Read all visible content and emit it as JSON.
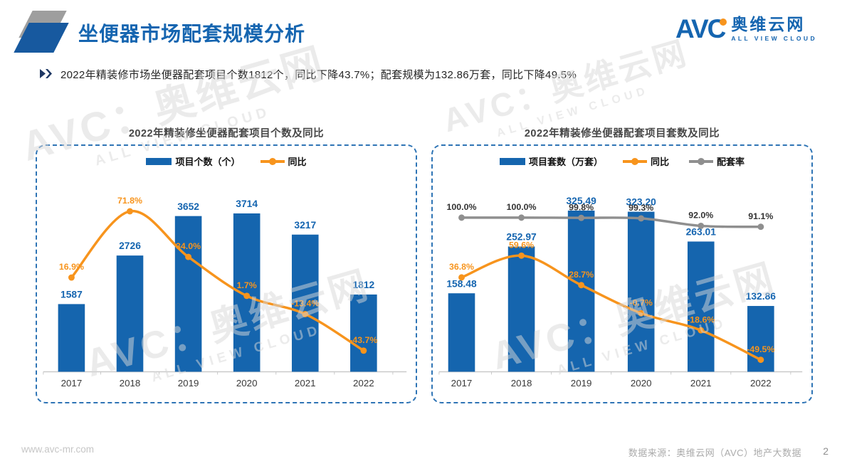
{
  "header": {
    "title": "坐便器市场配套规模分析",
    "logo": {
      "brand": "AVC",
      "brand_cn": "奥维云网",
      "brand_en": "ALL VIEW CLOUD"
    }
  },
  "summary": {
    "bullet": "2022年精装修市场坐便器配套项目个数1812个，同比下降43.7%；配套规模为132.86万套，同比下降49.5%"
  },
  "watermark": {
    "line1": "AVC：奥维云网",
    "line2": "ALL VIEW CLOUD"
  },
  "colors": {
    "bar_blue": "#1565ae",
    "label_blue": "#1565b0",
    "orange": "#f7941d",
    "gray_line": "#8f8f8f",
    "accent_blue": "#2e74b5"
  },
  "chart_data": [
    {
      "type": "bar",
      "title": "2022年精装修坐便器配套项目个数及同比",
      "categories": [
        "2017",
        "2018",
        "2019",
        "2020",
        "2021",
        "2022"
      ],
      "legend_position": "top",
      "grid": false,
      "series": [
        {
          "name": "项目个数（个）",
          "kind": "bar",
          "color": "#1565ae",
          "values": [
            1587,
            2726,
            3652,
            3714,
            3217,
            1812
          ],
          "labels": [
            "1587",
            "2726",
            "3652",
            "3714",
            "3217",
            "1812"
          ]
        },
        {
          "name": "同比",
          "kind": "line",
          "color": "#f7941d",
          "values": [
            16.9,
            71.8,
            34.0,
            1.7,
            -13.4,
            -43.7
          ],
          "labels": [
            "16.9%",
            "71.8%",
            "34.0%",
            "1.7%",
            "-13.4%",
            "-43.7%"
          ]
        }
      ]
    },
    {
      "type": "bar",
      "title": "2022年精装修坐便器配套项目套数及同比",
      "categories": [
        "2017",
        "2018",
        "2019",
        "2020",
        "2021",
        "2022"
      ],
      "legend_position": "top",
      "grid": false,
      "series": [
        {
          "name": "项目套数（万套）",
          "kind": "bar",
          "color": "#1565ae",
          "values": [
            158.48,
            252.97,
            325.49,
            323.2,
            263.01,
            132.86
          ],
          "labels": [
            "158.48",
            "252.97",
            "325.49",
            "323.20",
            "263.01",
            "132.86"
          ]
        },
        {
          "name": "同比",
          "kind": "line",
          "color": "#f7941d",
          "values": [
            36.8,
            59.6,
            28.7,
            -0.7,
            -18.6,
            -49.5
          ],
          "labels": [
            "36.8%",
            "59.6%",
            "28.7%",
            "-0.7%",
            "-18.6%",
            "-49.5%"
          ]
        },
        {
          "name": "配套率",
          "kind": "line",
          "color": "#8f8f8f",
          "values": [
            100.0,
            100.0,
            99.8,
            99.3,
            92.0,
            91.1
          ],
          "labels": [
            "100.0%",
            "100.0%",
            "99.8%",
            "99.3%",
            "92.0%",
            "91.1%"
          ]
        }
      ]
    }
  ],
  "footer": {
    "website": "www.avc-mr.com",
    "source": "数据来源：奥维云网（AVC）地产大数据",
    "page": "2"
  }
}
